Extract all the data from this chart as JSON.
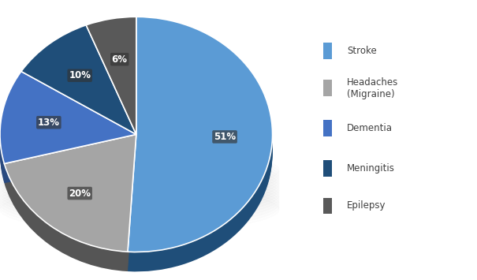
{
  "labels": [
    "Stroke",
    "Headaches\n(Migraine)",
    "Dementia",
    "Meningitis",
    "Epilepsy"
  ],
  "legend_labels": [
    "Stroke",
    "Headaches\n(Migraine)",
    "Dementia",
    "Meningitis",
    "Epilepsy"
  ],
  "values": [
    51,
    20,
    13,
    10,
    6
  ],
  "pct_labels": [
    "51%",
    "20%",
    "13%",
    "10%",
    "6%"
  ],
  "colors": [
    "#5B9BD5",
    "#A5A5A5",
    "#4472C4",
    "#1F4E79",
    "#595959"
  ],
  "edge_colors": [
    "#1F4E79",
    "#555555",
    "#2a4a7f",
    "#112a40",
    "#333333"
  ],
  "background_color": "#FFFFFF",
  "startangle": 90,
  "figsize": [
    6.05,
    3.55
  ],
  "dpi": 100,
  "legend_bg": "#EBEBEB"
}
